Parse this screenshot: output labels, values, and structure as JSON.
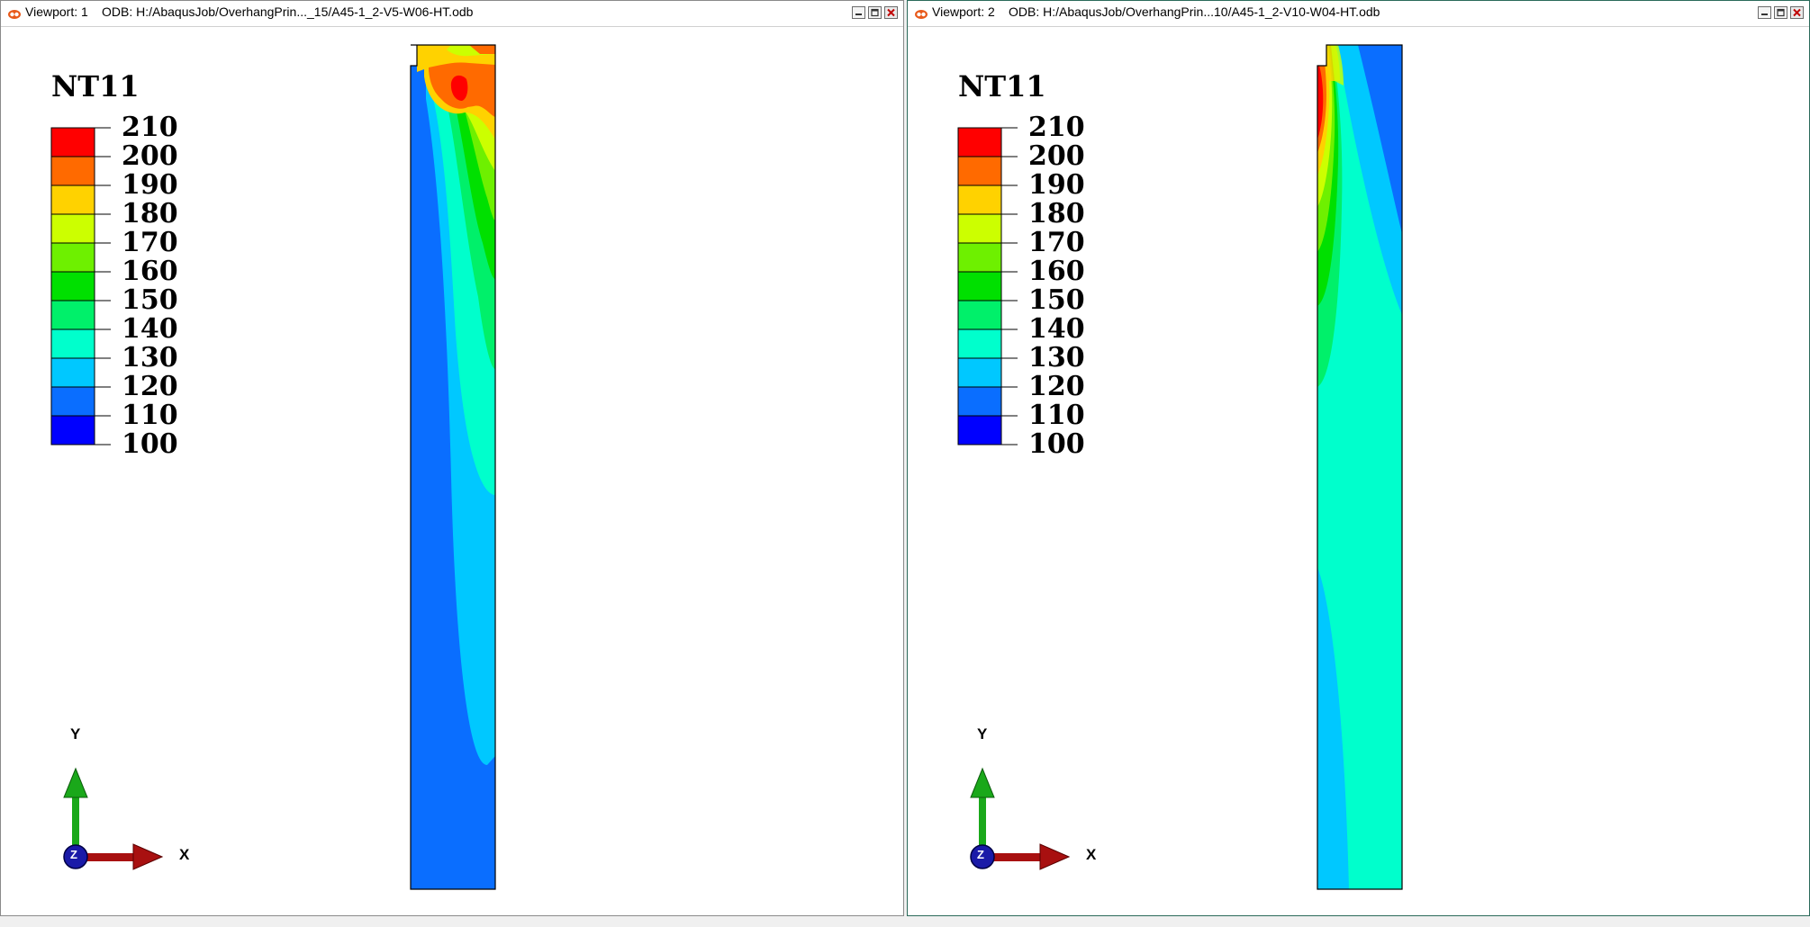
{
  "viewports": [
    {
      "name": "Viewport: 1",
      "odb_label": "ODB: H:/AbaqusJob/OverhangPrin..._15/A45-1_2-V5-W06-HT.odb"
    },
    {
      "name": "Viewport: 2",
      "odb_label": "ODB: H:/AbaqusJob/OverhangPrin...10/A45-1_2-V10-W04-HT.odb"
    }
  ],
  "legend": {
    "variable": "NT11",
    "labels": [
      "210",
      "200",
      "190",
      "180",
      "170",
      "160",
      "150",
      "140",
      "130",
      "120",
      "110",
      "100"
    ],
    "colors": [
      "#ff0000",
      "#ff6a00",
      "#ffd200",
      "#ccff00",
      "#6ef000",
      "#00e000",
      "#00f06a",
      "#00ffcc",
      "#00c8ff",
      "#0a6eff",
      "#0000ff"
    ]
  },
  "triad": {
    "y": "Y",
    "x": "X",
    "z": "Z"
  },
  "colors": {
    "titlebar_bg": "#ffffff",
    "viewport_bg": "#ffffff"
  }
}
